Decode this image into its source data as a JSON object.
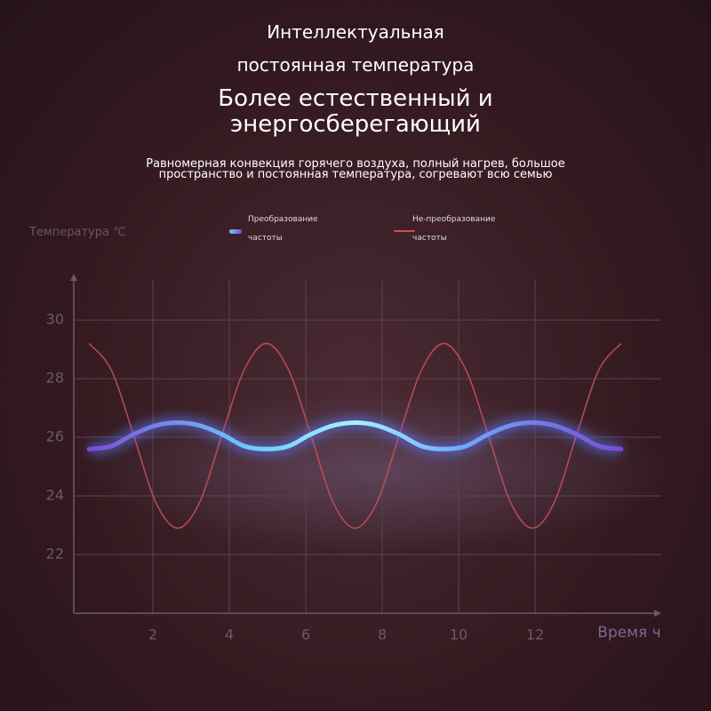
{
  "header": {
    "lines": [
      "Интеллектуальная",
      "постоянная температура"
    ],
    "headline": [
      "Более естественный и",
      "энергосберегающий"
    ],
    "subtitle": [
      "Равномерная конвекция горячего воздуха, полный нагрев, большое",
      "пространство и постоянная температура, согревают всю семью"
    ]
  },
  "chart_data": {
    "type": "line",
    "y_label": "Температура ℃",
    "x_label": "Время ч",
    "x": [
      0.33,
      0.91,
      1.49,
      2.07,
      2.65,
      3.23,
      3.81,
      4.39,
      4.97,
      5.55,
      6.13,
      6.71,
      7.29,
      7.87,
      8.45,
      9.03,
      9.61,
      10.19,
      10.77,
      11.35,
      11.93,
      12.51,
      13.09,
      13.67,
      14.25
    ],
    "series": [
      {
        "name": "Преобразование частоты",
        "color": "#6fc8ff",
        "values": [
          25.6,
          25.7,
          26.1,
          26.4,
          26.5,
          26.4,
          26.1,
          25.7,
          25.6,
          25.7,
          26.1,
          26.4,
          26.5,
          26.4,
          26.1,
          25.7,
          25.6,
          25.7,
          26.1,
          26.4,
          26.5,
          26.4,
          26.1,
          25.7,
          25.6
        ]
      },
      {
        "name": "Не-преобразование частоты",
        "color": "#c9505c",
        "values": [
          29.2,
          28.3,
          26.1,
          23.8,
          22.9,
          23.8,
          26.1,
          28.3,
          29.2,
          28.3,
          26.1,
          23.8,
          22.9,
          23.8,
          26.1,
          28.3,
          29.2,
          28.3,
          26.1,
          23.8,
          22.9,
          23.8,
          26.1,
          28.3,
          29.2
        ]
      }
    ],
    "xlim": [
      0,
      15.3
    ],
    "xticks": [
      2,
      4,
      6,
      8,
      10,
      12
    ],
    "ylim": [
      20,
      31.7
    ],
    "yticks": [
      22,
      24,
      26,
      28,
      30
    ],
    "grid": true
  }
}
